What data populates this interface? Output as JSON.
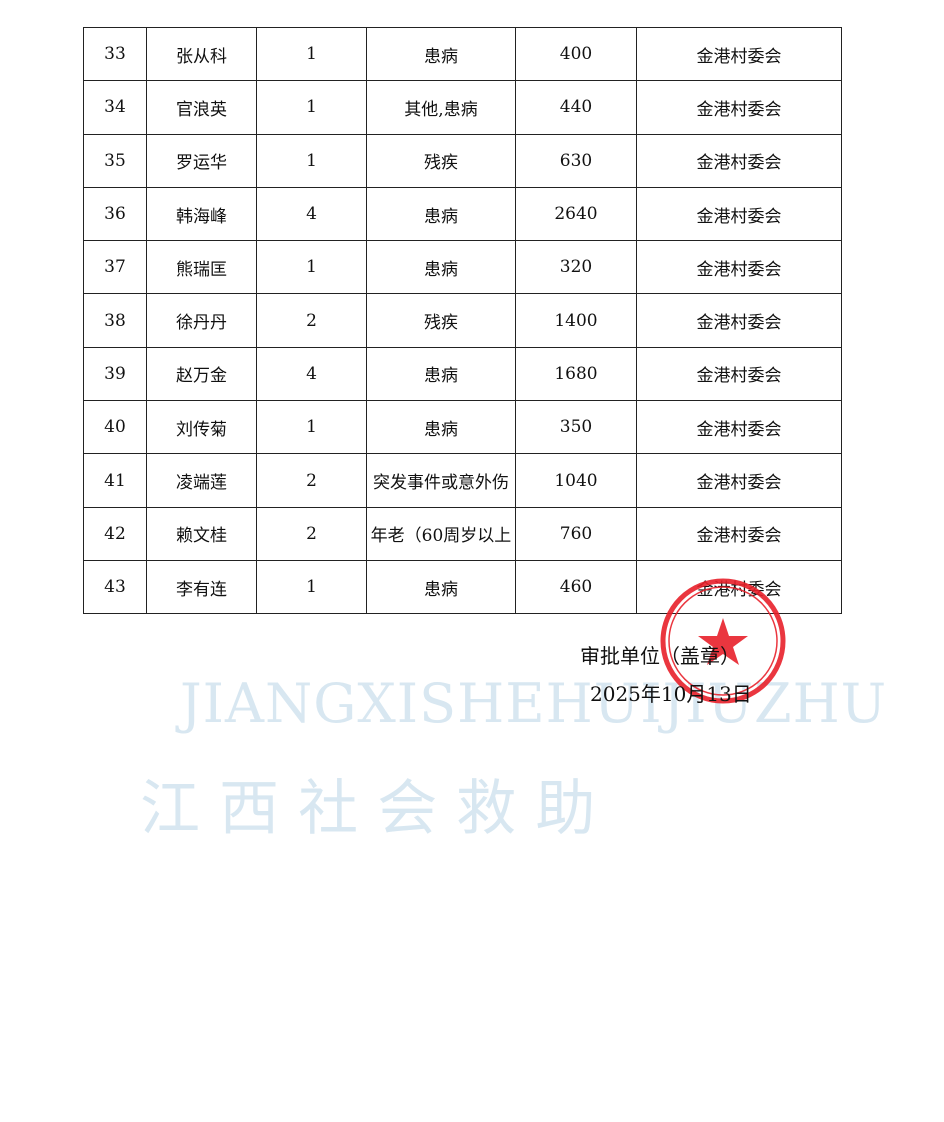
{
  "table": {
    "rows": [
      [
        "33",
        "张从科",
        "1",
        "患病",
        "400",
        "金港村委会"
      ],
      [
        "34",
        "官浪英",
        "1",
        "其他,患病",
        "440",
        "金港村委会"
      ],
      [
        "35",
        "罗运华",
        "1",
        "残疾",
        "630",
        "金港村委会"
      ],
      [
        "36",
        "韩海峰",
        "4",
        "患病",
        "2640",
        "金港村委会"
      ],
      [
        "37",
        "熊瑞匡",
        "1",
        "患病",
        "320",
        "金港村委会"
      ],
      [
        "38",
        "徐丹丹",
        "2",
        "残疾",
        "1400",
        "金港村委会"
      ],
      [
        "39",
        "赵万金",
        "4",
        "患病",
        "1680",
        "金港村委会"
      ],
      [
        "40",
        "刘传菊",
        "1",
        "患病",
        "350",
        "金港村委会"
      ],
      [
        "41",
        "凌端莲",
        "2",
        "突发事件或意外伤",
        "1040",
        "金港村委会"
      ],
      [
        "42",
        "赖文桂",
        "2",
        "年老（60周岁以上",
        "760",
        "金港村委会"
      ],
      [
        "43",
        "李有连",
        "1",
        "患病",
        "460",
        "金港村委会"
      ]
    ]
  },
  "footer": {
    "approver": "审批单位（盖章）",
    "date": "2025年10月13日"
  },
  "watermark": {
    "latin": "JIANGXISHEHUIJIUZHU",
    "chinese": "江 西 社 会 救 助"
  }
}
